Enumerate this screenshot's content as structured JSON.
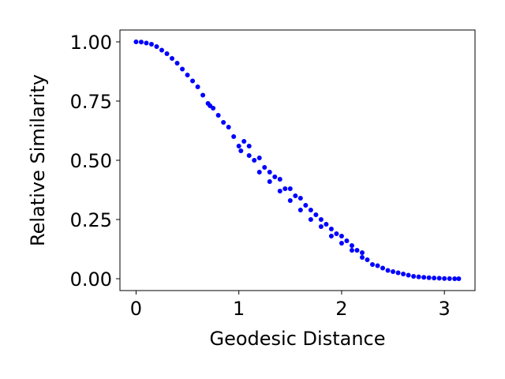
{
  "chart_data": {
    "type": "scatter",
    "title": "",
    "xlabel": "Geodesic Distance",
    "ylabel": "Relative Similarity",
    "xlim": [
      -0.157,
      3.298
    ],
    "ylim": [
      -0.05,
      1.05
    ],
    "xticks": [
      0,
      1,
      2,
      3
    ],
    "xtick_labels": [
      "0",
      "1",
      "2",
      "3"
    ],
    "yticks": [
      0.0,
      0.25,
      0.5,
      0.75,
      1.0
    ],
    "ytick_labels": [
      "0.00",
      "0.25",
      "0.50",
      "0.75",
      "1.00"
    ],
    "grid": false,
    "legend": "none",
    "marker_color": "#0000ff",
    "series": [
      {
        "x": [
          0.0,
          0.05,
          0.1,
          0.15,
          0.2,
          0.25,
          0.3,
          0.35,
          0.4,
          0.45,
          0.5,
          0.55,
          0.6,
          0.65,
          0.7,
          0.72,
          0.75,
          0.8,
          0.85,
          0.9,
          0.95,
          1.0,
          1.02,
          1.05,
          1.1,
          1.1,
          1.15,
          1.2,
          1.2,
          1.25,
          1.3,
          1.3,
          1.35,
          1.4,
          1.4,
          1.45,
          1.5,
          1.5,
          1.55,
          1.6,
          1.6,
          1.65,
          1.7,
          1.7,
          1.75,
          1.8,
          1.8,
          1.85,
          1.9,
          1.9,
          1.95,
          2.0,
          2.0,
          2.05,
          2.1,
          2.1,
          2.15,
          2.2,
          2.2,
          2.25,
          2.3,
          2.35,
          2.4,
          2.45,
          2.5,
          2.55,
          2.6,
          2.65,
          2.7,
          2.75,
          2.8,
          2.85,
          2.9,
          2.95,
          3.0,
          3.05,
          3.1,
          3.14
        ],
        "y": [
          1.0,
          0.999,
          0.995,
          0.99,
          0.98,
          0.965,
          0.95,
          0.93,
          0.91,
          0.885,
          0.86,
          0.835,
          0.81,
          0.775,
          0.74,
          0.73,
          0.72,
          0.69,
          0.66,
          0.64,
          0.6,
          0.56,
          0.54,
          0.58,
          0.52,
          0.56,
          0.5,
          0.45,
          0.51,
          0.47,
          0.41,
          0.45,
          0.43,
          0.37,
          0.42,
          0.38,
          0.33,
          0.38,
          0.35,
          0.29,
          0.34,
          0.31,
          0.25,
          0.29,
          0.27,
          0.22,
          0.25,
          0.23,
          0.18,
          0.21,
          0.19,
          0.15,
          0.18,
          0.16,
          0.12,
          0.14,
          0.12,
          0.09,
          0.11,
          0.08,
          0.06,
          0.055,
          0.045,
          0.035,
          0.03,
          0.025,
          0.02,
          0.015,
          0.01,
          0.008,
          0.006,
          0.004,
          0.003,
          0.002,
          0.001,
          0.0005,
          0.0,
          0.0
        ]
      }
    ]
  }
}
